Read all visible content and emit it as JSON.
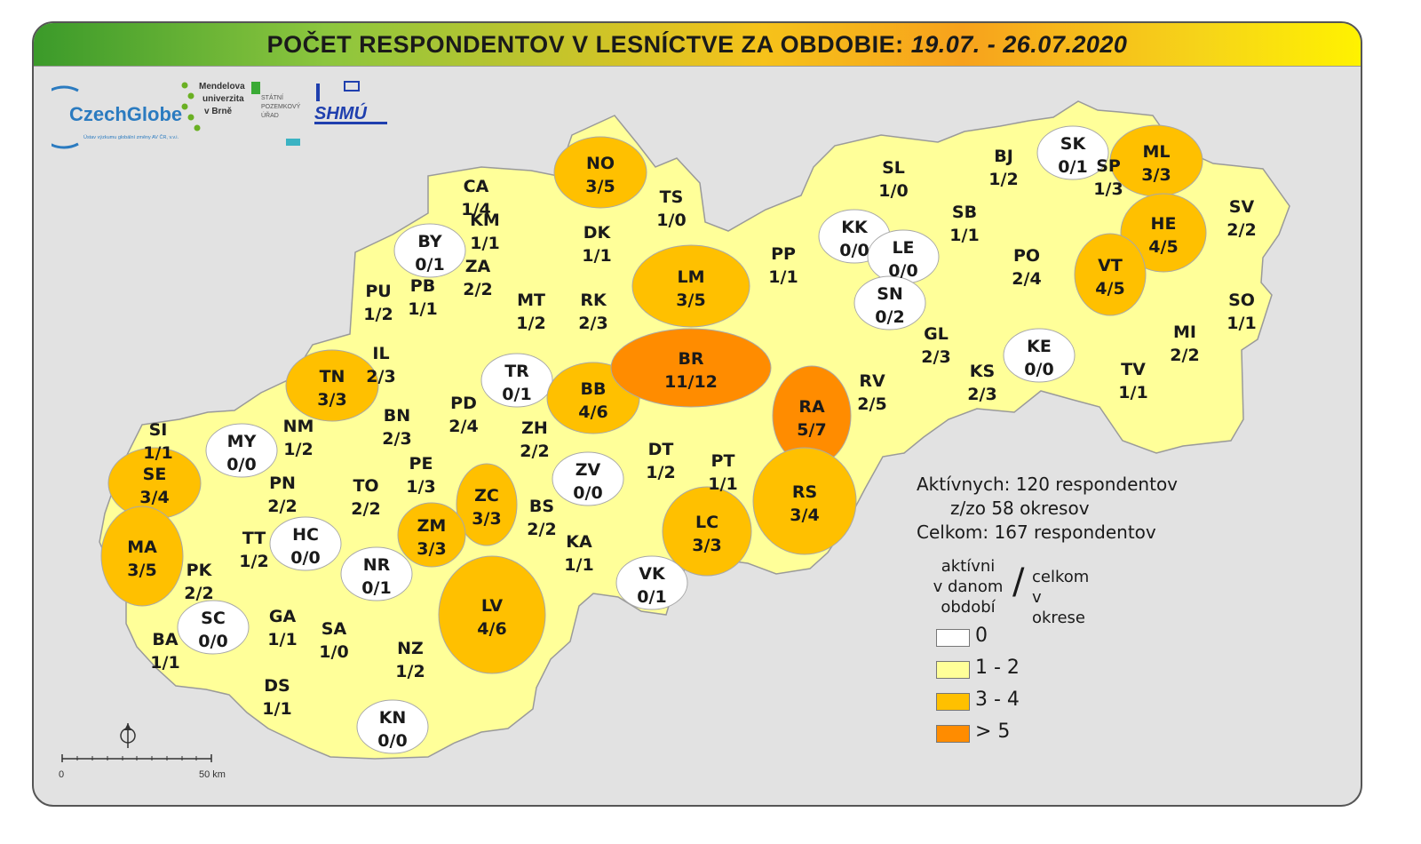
{
  "title": {
    "main": "POČET RESPONDENTOV V LESNÍCTVE ZA OBDOBIE:",
    "period": "19.07. - 26.07.2020"
  },
  "logos": {
    "czechglobe": "CzechGlobe",
    "czechglobe_sub": "Ústav výzkumu globální změny AV ČR, v.v.i.",
    "mendelu_1": "Mendelova",
    "mendelu_2": "univerzita",
    "mendelu_3": "v Brně",
    "spu_1": "STÁTNÍ",
    "spu_2": "POZEMKOVÝ",
    "spu_3": "ÚŘAD",
    "shmu": "SHMÚ"
  },
  "colors": {
    "zero": "#ffffff",
    "low": "#ffff99",
    "mid": "#ffc000",
    "high": "#ff8c00"
  },
  "districts": [
    {
      "code": "CA",
      "value": "1/4",
      "class": "low"
    },
    {
      "code": "NO",
      "value": "3/5",
      "class": "mid"
    },
    {
      "code": "TS",
      "value": "1/0",
      "class": "low"
    },
    {
      "code": "KM",
      "value": "1/1",
      "class": "low"
    },
    {
      "code": "BY",
      "value": "0/1",
      "class": "zero"
    },
    {
      "code": "DK",
      "value": "1/1",
      "class": "low"
    },
    {
      "code": "ZA",
      "value": "2/2",
      "class": "low"
    },
    {
      "code": "PU",
      "value": "1/2",
      "class": "low"
    },
    {
      "code": "PB",
      "value": "1/1",
      "class": "low"
    },
    {
      "code": "MT",
      "value": "1/2",
      "class": "low"
    },
    {
      "code": "RK",
      "value": "2/3",
      "class": "low"
    },
    {
      "code": "LM",
      "value": "3/5",
      "class": "mid"
    },
    {
      "code": "PP",
      "value": "1/1",
      "class": "low"
    },
    {
      "code": "IL",
      "value": "2/3",
      "class": "low"
    },
    {
      "code": "TN",
      "value": "3/3",
      "class": "mid"
    },
    {
      "code": "TR",
      "value": "0/1",
      "class": "zero"
    },
    {
      "code": "BB",
      "value": "4/6",
      "class": "mid"
    },
    {
      "code": "BR",
      "value": "11/12",
      "class": "high"
    },
    {
      "code": "RA",
      "value": "5/7",
      "class": "high"
    },
    {
      "code": "RV",
      "value": "2/5",
      "class": "low"
    },
    {
      "code": "SL",
      "value": "1/0",
      "class": "low"
    },
    {
      "code": "KK",
      "value": "0/0",
      "class": "zero"
    },
    {
      "code": "LE",
      "value": "0/0",
      "class": "zero"
    },
    {
      "code": "SN",
      "value": "0/2",
      "class": "zero"
    },
    {
      "code": "BJ",
      "value": "1/2",
      "class": "low"
    },
    {
      "code": "SB",
      "value": "1/1",
      "class": "low"
    },
    {
      "code": "SK",
      "value": "0/1",
      "class": "zero"
    },
    {
      "code": "SP",
      "value": "1/3",
      "class": "low"
    },
    {
      "code": "ML",
      "value": "3/3",
      "class": "mid"
    },
    {
      "code": "HE",
      "value": "4/5",
      "class": "mid"
    },
    {
      "code": "SV",
      "value": "2/2",
      "class": "low"
    },
    {
      "code": "PO",
      "value": "2/4",
      "class": "low"
    },
    {
      "code": "VT",
      "value": "4/5",
      "class": "mid"
    },
    {
      "code": "SO",
      "value": "1/1",
      "class": "low"
    },
    {
      "code": "GL",
      "value": "2/3",
      "class": "low"
    },
    {
      "code": "KE",
      "value": "0/0",
      "class": "zero"
    },
    {
      "code": "KS",
      "value": "2/3",
      "class": "low"
    },
    {
      "code": "TV",
      "value": "1/1",
      "class": "low"
    },
    {
      "code": "MI",
      "value": "2/2",
      "class": "low"
    },
    {
      "code": "SI",
      "value": "1/1",
      "class": "low"
    },
    {
      "code": "MY",
      "value": "0/0",
      "class": "zero"
    },
    {
      "code": "NM",
      "value": "1/2",
      "class": "low"
    },
    {
      "code": "BN",
      "value": "2/3",
      "class": "low"
    },
    {
      "code": "PD",
      "value": "2/4",
      "class": "low"
    },
    {
      "code": "ZH",
      "value": "2/2",
      "class": "low"
    },
    {
      "code": "SE",
      "value": "3/4",
      "class": "mid"
    },
    {
      "code": "PE",
      "value": "1/3",
      "class": "low"
    },
    {
      "code": "PN",
      "value": "2/2",
      "class": "low"
    },
    {
      "code": "TO",
      "value": "2/2",
      "class": "low"
    },
    {
      "code": "ZC",
      "value": "3/3",
      "class": "mid"
    },
    {
      "code": "BS",
      "value": "2/2",
      "class": "low"
    },
    {
      "code": "ZV",
      "value": "0/0",
      "class": "zero"
    },
    {
      "code": "DT",
      "value": "1/2",
      "class": "low"
    },
    {
      "code": "PT",
      "value": "1/1",
      "class": "low"
    },
    {
      "code": "RS",
      "value": "3/4",
      "class": "mid"
    },
    {
      "code": "MA",
      "value": "3/5",
      "class": "mid"
    },
    {
      "code": "TT",
      "value": "1/2",
      "class": "low"
    },
    {
      "code": "HC",
      "value": "0/0",
      "class": "zero"
    },
    {
      "code": "ZM",
      "value": "3/3",
      "class": "mid"
    },
    {
      "code": "KA",
      "value": "1/1",
      "class": "low"
    },
    {
      "code": "LC",
      "value": "3/3",
      "class": "mid"
    },
    {
      "code": "NR",
      "value": "0/1",
      "class": "zero"
    },
    {
      "code": "VK",
      "value": "0/1",
      "class": "zero"
    },
    {
      "code": "PK",
      "value": "2/2",
      "class": "low"
    },
    {
      "code": "LV",
      "value": "4/6",
      "class": "mid"
    },
    {
      "code": "SC",
      "value": "0/0",
      "class": "zero"
    },
    {
      "code": "GA",
      "value": "1/1",
      "class": "low"
    },
    {
      "code": "SA",
      "value": "1/0",
      "class": "low"
    },
    {
      "code": "NZ",
      "value": "1/2",
      "class": "low"
    },
    {
      "code": "BA",
      "value": "1/1",
      "class": "low"
    },
    {
      "code": "DS",
      "value": "1/1",
      "class": "low"
    },
    {
      "code": "KN",
      "value": "0/0",
      "class": "zero"
    }
  ],
  "stats": {
    "active": "Aktívnych: 120 respondentov",
    "districts": "z/zo 58 okresov",
    "total": "Celkom: 167 respondentov"
  },
  "legend": {
    "left_1": "aktívni",
    "left_2": "v danom",
    "left_3": "období",
    "slash": "/",
    "right_1": "celkom",
    "right_2": "v okrese",
    "items": [
      {
        "label": "0",
        "class": "zero"
      },
      {
        "label": "1 - 2",
        "class": "low"
      },
      {
        "label": "3 - 4",
        "class": "mid"
      },
      {
        "label": "> 5",
        "class": "high"
      }
    ]
  },
  "scale": {
    "start": "0",
    "end": "50 km"
  }
}
